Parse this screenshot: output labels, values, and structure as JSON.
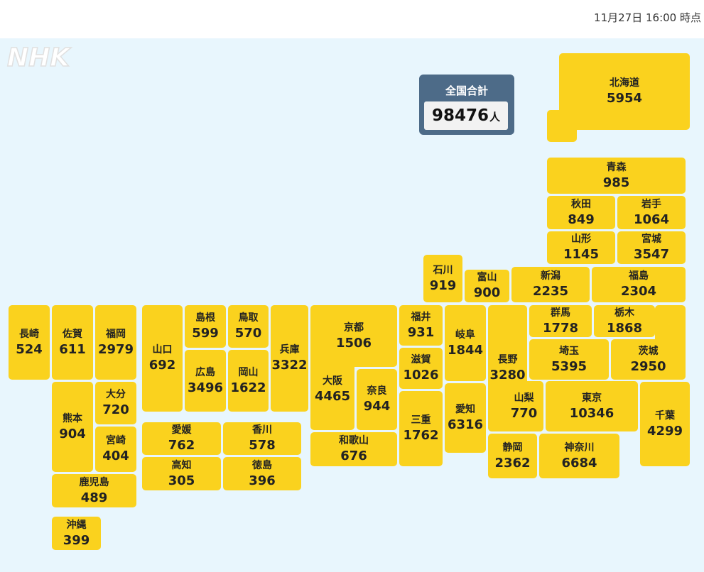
{
  "header": {
    "timestamp": "11月27日 16:00 時点"
  },
  "logo": {
    "text": "NHK"
  },
  "total": {
    "label": "全国合計",
    "value": "98476",
    "unit": "人"
  },
  "colors": {
    "tile": "#fad21e",
    "map_background": "#e8f6fd",
    "total_box": "#4d6b88"
  },
  "prefectures": {
    "hokkaido": {
      "name": "北海道",
      "count": "5954"
    },
    "aomori": {
      "name": "青森",
      "count": "985"
    },
    "akita": {
      "name": "秋田",
      "count": "849"
    },
    "iwate": {
      "name": "岩手",
      "count": "1064"
    },
    "yamagata": {
      "name": "山形",
      "count": "1145"
    },
    "miyagi": {
      "name": "宮城",
      "count": "3547"
    },
    "ishikawa": {
      "name": "石川",
      "count": "919"
    },
    "toyama": {
      "name": "富山",
      "count": "900"
    },
    "niigata": {
      "name": "新潟",
      "count": "2235"
    },
    "fukushima": {
      "name": "福島",
      "count": "2304"
    },
    "nagasaki": {
      "name": "長崎",
      "count": "524"
    },
    "saga": {
      "name": "佐賀",
      "count": "611"
    },
    "fukuoka": {
      "name": "福岡",
      "count": "2979"
    },
    "yamaguchi": {
      "name": "山口",
      "count": "692"
    },
    "shimane": {
      "name": "島根",
      "count": "599"
    },
    "tottori": {
      "name": "鳥取",
      "count": "570"
    },
    "hyogo": {
      "name": "兵庫",
      "count": "3322"
    },
    "kyoto": {
      "name": "京都",
      "count": "1506"
    },
    "fukui": {
      "name": "福井",
      "count": "931"
    },
    "gifu": {
      "name": "岐阜",
      "count": "1844"
    },
    "nagano": {
      "name": "長野",
      "count": "3280"
    },
    "gunma": {
      "name": "群馬",
      "count": "1778"
    },
    "tochigi": {
      "name": "栃木",
      "count": "1868"
    },
    "hiroshima": {
      "name": "広島",
      "count": "3496"
    },
    "okayama": {
      "name": "岡山",
      "count": "1622"
    },
    "osaka": {
      "name": "大阪",
      "count": "4465"
    },
    "shiga": {
      "name": "滋賀",
      "count": "1026"
    },
    "saitama": {
      "name": "埼玉",
      "count": "5395"
    },
    "ibaraki": {
      "name": "茨城",
      "count": "2950"
    },
    "nara": {
      "name": "奈良",
      "count": "944"
    },
    "kumamoto": {
      "name": "熊本",
      "count": "904"
    },
    "oita": {
      "name": "大分",
      "count": "720"
    },
    "mie": {
      "name": "三重",
      "count": "1762"
    },
    "aichi": {
      "name": "愛知",
      "count": "6316"
    },
    "yamanashi": {
      "name": "山梨",
      "count": "770"
    },
    "tokyo": {
      "name": "東京",
      "count": "10346"
    },
    "chiba": {
      "name": "千葉",
      "count": "4299"
    },
    "miyazaki": {
      "name": "宮崎",
      "count": "404"
    },
    "ehime": {
      "name": "愛媛",
      "count": "762"
    },
    "kagawa": {
      "name": "香川",
      "count": "578"
    },
    "wakayama": {
      "name": "和歌山",
      "count": "676"
    },
    "shizuoka": {
      "name": "静岡",
      "count": "2362"
    },
    "kanagawa": {
      "name": "神奈川",
      "count": "6684"
    },
    "kochi": {
      "name": "高知",
      "count": "305"
    },
    "tokushima": {
      "name": "徳島",
      "count": "396"
    },
    "kagoshima": {
      "name": "鹿児島",
      "count": "489"
    },
    "okinawa": {
      "name": "沖縄",
      "count": "399"
    }
  }
}
